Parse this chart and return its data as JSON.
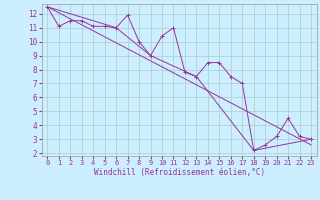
{
  "xlabel": "Windchill (Refroidissement éolien,°C)",
  "background_color": "#cceeff",
  "grid_color": "#aacccc",
  "line_color": "#993399",
  "xlim": [
    -0.5,
    23.5
  ],
  "ylim": [
    1.8,
    12.7
  ],
  "xticks": [
    0,
    1,
    2,
    3,
    4,
    5,
    6,
    7,
    8,
    9,
    10,
    11,
    12,
    13,
    14,
    15,
    16,
    17,
    18,
    19,
    20,
    21,
    22,
    23
  ],
  "yticks": [
    2,
    3,
    4,
    5,
    6,
    7,
    8,
    9,
    10,
    11,
    12
  ],
  "series1_x": [
    0,
    1,
    2,
    3,
    4,
    5,
    6,
    7,
    8,
    9,
    10,
    11,
    12,
    13,
    14,
    15,
    16,
    17,
    18,
    19,
    20,
    21,
    22,
    23
  ],
  "series1_y": [
    12.5,
    11.1,
    11.5,
    11.5,
    11.1,
    11.1,
    11.0,
    11.9,
    10.0,
    9.0,
    10.4,
    11.0,
    7.8,
    7.5,
    8.5,
    8.5,
    7.5,
    7.0,
    2.2,
    2.6,
    3.2,
    4.5,
    3.2,
    3.0
  ],
  "series2_x": [
    0,
    23
  ],
  "series2_y": [
    12.5,
    2.6
  ],
  "series3_x": [
    0,
    6,
    9,
    13,
    18,
    23
  ],
  "series3_y": [
    12.5,
    11.0,
    9.0,
    7.5,
    2.2,
    3.0
  ],
  "xlabel_fontsize": 5.5,
  "tick_fontsize": 5.0,
  "linewidth": 0.7,
  "marker_size": 2.5
}
